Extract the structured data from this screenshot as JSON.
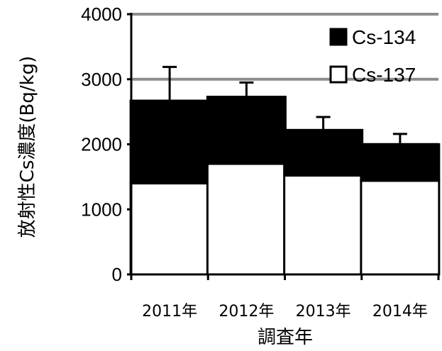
{
  "chart_data": {
    "type": "bar",
    "stacked": true,
    "categories": [
      "2011年",
      "2012年",
      "2013年",
      "2014年"
    ],
    "series": [
      {
        "name": "Cs-137",
        "values": [
          1400,
          1700,
          1520,
          1440
        ],
        "color": "#ffffff"
      },
      {
        "name": "Cs-134",
        "values": [
          1270,
          1030,
          700,
          560
        ],
        "color": "#000000"
      }
    ],
    "error_plus": [
      520,
      220,
      200,
      160
    ],
    "xlabel": "調査年",
    "ylabel": "放射性Cs濃度(Bq/kg)",
    "yticks": [
      "0",
      "1000",
      "2000",
      "3000",
      "4000"
    ],
    "ylim": [
      0,
      4000
    ],
    "grid": true,
    "legend_position": "top-right",
    "legend_order": [
      "Cs-134",
      "Cs-137"
    ]
  }
}
